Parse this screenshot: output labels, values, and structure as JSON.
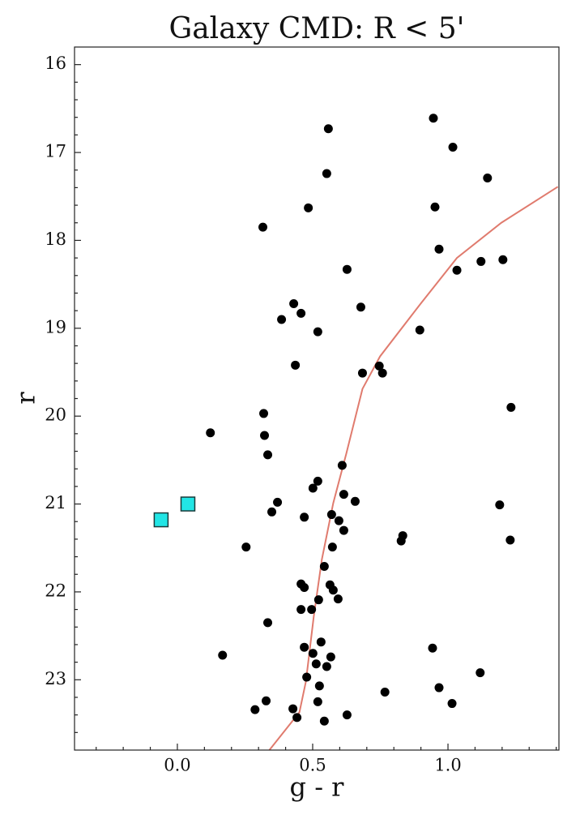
{
  "chart_data": {
    "type": "scatter",
    "title": "Galaxy CMD: R < 5'",
    "x_label": "g - r",
    "y_label": "r",
    "xlim": [
      -0.38,
      1.41
    ],
    "ylim": [
      15.8,
      23.8
    ],
    "y_inverted": true,
    "grid": false,
    "xticks": [
      {
        "value": 0.0,
        "label": "0.0"
      },
      {
        "value": 0.5,
        "label": "0.5"
      },
      {
        "value": 1.0,
        "label": "1.0"
      }
    ],
    "yticks": [
      16,
      17,
      18,
      19,
      20,
      21,
      22,
      23
    ],
    "xminorticks": [
      -0.3,
      -0.2,
      -0.1,
      0.1,
      0.2,
      0.3,
      0.4,
      0.6,
      0.7,
      0.8,
      0.9,
      1.1,
      1.2,
      1.3,
      1.4
    ],
    "yminorticks": [
      16.2,
      16.4,
      16.6,
      16.8,
      17.2,
      17.4,
      17.6,
      17.8,
      18.2,
      18.4,
      18.6,
      18.8,
      19.2,
      19.4,
      19.6,
      19.8,
      20.2,
      20.4,
      20.6,
      20.8,
      21.2,
      21.4,
      21.6,
      21.8,
      22.2,
      22.4,
      22.6,
      22.8,
      23.2,
      23.4,
      23.6
    ],
    "series": [
      {
        "marker": "line",
        "color": "#e07b6e",
        "x": [
          0.34,
          0.451,
          0.475,
          0.504,
          0.534,
          0.576,
          0.624,
          0.684,
          0.749,
          0.899,
          1.033,
          1.197,
          1.406
        ],
        "y": [
          23.8,
          23.37,
          23.02,
          22.28,
          21.63,
          20.99,
          20.43,
          19.69,
          19.32,
          18.72,
          18.2,
          17.8,
          17.39
        ]
      },
      {
        "marker": "circle",
        "color": "#000000",
        "x": [
          0.946,
          0.558,
          1.018,
          0.552,
          1.146,
          0.484,
          0.952,
          0.316,
          0.967,
          1.203,
          1.122,
          0.627,
          1.033,
          0.43,
          0.678,
          0.457,
          0.385,
          0.519,
          0.896,
          0.746,
          0.436,
          0.684,
          0.758,
          1.233,
          0.319,
          0.122,
          0.322,
          0.334,
          0.609,
          0.519,
          0.501,
          0.615,
          0.657,
          0.37,
          1.191,
          0.349,
          0.57,
          0.469,
          0.597,
          0.615,
          1.23,
          0.833,
          0.827,
          0.254,
          0.573,
          0.543,
          0.457,
          0.469,
          0.564,
          0.576,
          0.594,
          0.522,
          0.457,
          0.496,
          0.334,
          0.531,
          0.469,
          0.943,
          0.567,
          0.167,
          0.501,
          0.513,
          0.552,
          1.119,
          0.478,
          0.525,
          0.967,
          0.767,
          1.015,
          0.519,
          0.328,
          0.287,
          0.427,
          0.627,
          0.442,
          0.543
        ],
        "y": [
          16.61,
          16.73,
          16.94,
          17.24,
          17.29,
          17.63,
          17.62,
          17.85,
          18.1,
          18.22,
          18.24,
          18.33,
          18.34,
          18.72,
          18.76,
          18.83,
          18.9,
          19.04,
          19.02,
          19.43,
          19.42,
          19.51,
          19.51,
          19.9,
          19.97,
          20.19,
          20.22,
          20.44,
          20.56,
          20.74,
          20.82,
          20.89,
          20.97,
          20.98,
          21.01,
          21.09,
          21.12,
          21.15,
          21.19,
          21.3,
          21.41,
          21.36,
          21.42,
          21.49,
          21.49,
          21.71,
          21.91,
          21.95,
          21.92,
          21.98,
          22.08,
          22.09,
          22.2,
          22.2,
          22.35,
          22.57,
          22.63,
          22.64,
          22.74,
          22.72,
          22.7,
          22.82,
          22.85,
          22.92,
          22.97,
          23.07,
          23.09,
          23.14,
          23.27,
          23.25,
          23.24,
          23.34,
          23.33,
          23.4,
          23.43,
          23.47
        ]
      },
      {
        "marker": "square",
        "color": "#22e5e5",
        "x": [
          -0.06,
          0.039
        ],
        "y": [
          21.18,
          21.0
        ]
      }
    ]
  }
}
